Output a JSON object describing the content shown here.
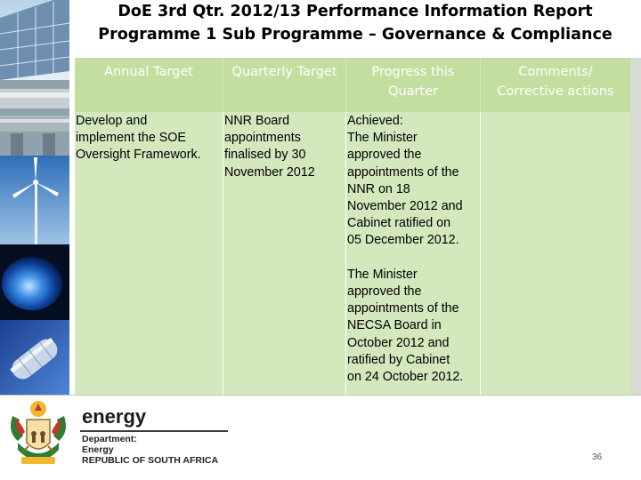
{
  "title": {
    "line1": "DoE 3rd Qtr. 2012/13 Performance Information Report",
    "line2": "Programme 1 Sub Programme – Governance & Compliance"
  },
  "table": {
    "headers": {
      "annual_target": "Annual Target",
      "quarterly_target": "Quarterly Target",
      "progress_line1": "Progress this",
      "progress_line2": "Quarter",
      "comments_line1": "Comments/",
      "comments_line2": "Corrective actions"
    },
    "row": {
      "annual_target": [
        "Develop and",
        "implement the SOE",
        "Oversight Framework."
      ],
      "quarterly_target": [
        "NNR Board",
        "appointments",
        "finalised by 30",
        "November 2012"
      ],
      "progress": [
        "Achieved:",
        "The Minister",
        "approved the",
        "appointments of the",
        "NNR on 18",
        "November 2012 and",
        "Cabinet ratified on",
        "05 December 2012.",
        "",
        "The Minister",
        "approved the",
        "appointments of the",
        "NECSA Board in",
        "October 2012 and",
        "ratified by Cabinet",
        "on 24 October 2012."
      ],
      "comments": []
    }
  },
  "footer": {
    "brand": "energy",
    "line1": "Department:",
    "line2": "Energy",
    "line3": "REPUBLIC OF SOUTH AFRICA",
    "page_number": "36"
  },
  "colors": {
    "header_bg": "#c3df9f",
    "body_bg": "#d4e8bd",
    "header_text": "#ffffff"
  },
  "icons": [
    "solar-panel-icon",
    "pipeline-icon",
    "wind-turbine-icon",
    "gas-flame-icon",
    "fuel-rod-icon",
    "coat-of-arms-logo"
  ]
}
